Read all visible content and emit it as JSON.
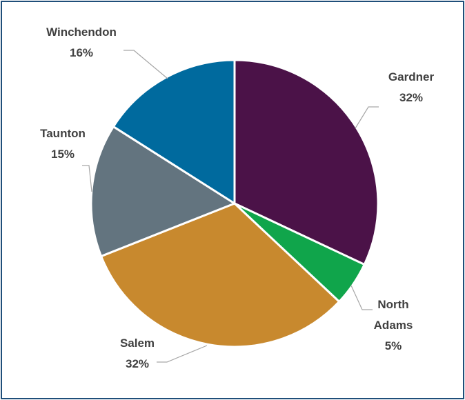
{
  "chart_data": {
    "type": "pie",
    "title": "",
    "slices": [
      {
        "label": "Gardner",
        "value": 32,
        "display": "32%",
        "color": "#4b1248"
      },
      {
        "label": "North Adams",
        "value": 5,
        "display": "5%",
        "color": "#10a54b"
      },
      {
        "label": "Salem",
        "value": 32,
        "display": "32%",
        "color": "#c8892e"
      },
      {
        "label": "Taunton",
        "value": 15,
        "display": "15%",
        "color": "#63747f"
      },
      {
        "label": "Winchendon",
        "value": 16,
        "display": "16%",
        "color": "#006a9e"
      }
    ],
    "legend": "none",
    "data_labels": "outside-with-leader-lines"
  },
  "colors": {
    "border": "#1f4e79",
    "leader_line": "#a6a6a6",
    "label_text": "#404040"
  }
}
